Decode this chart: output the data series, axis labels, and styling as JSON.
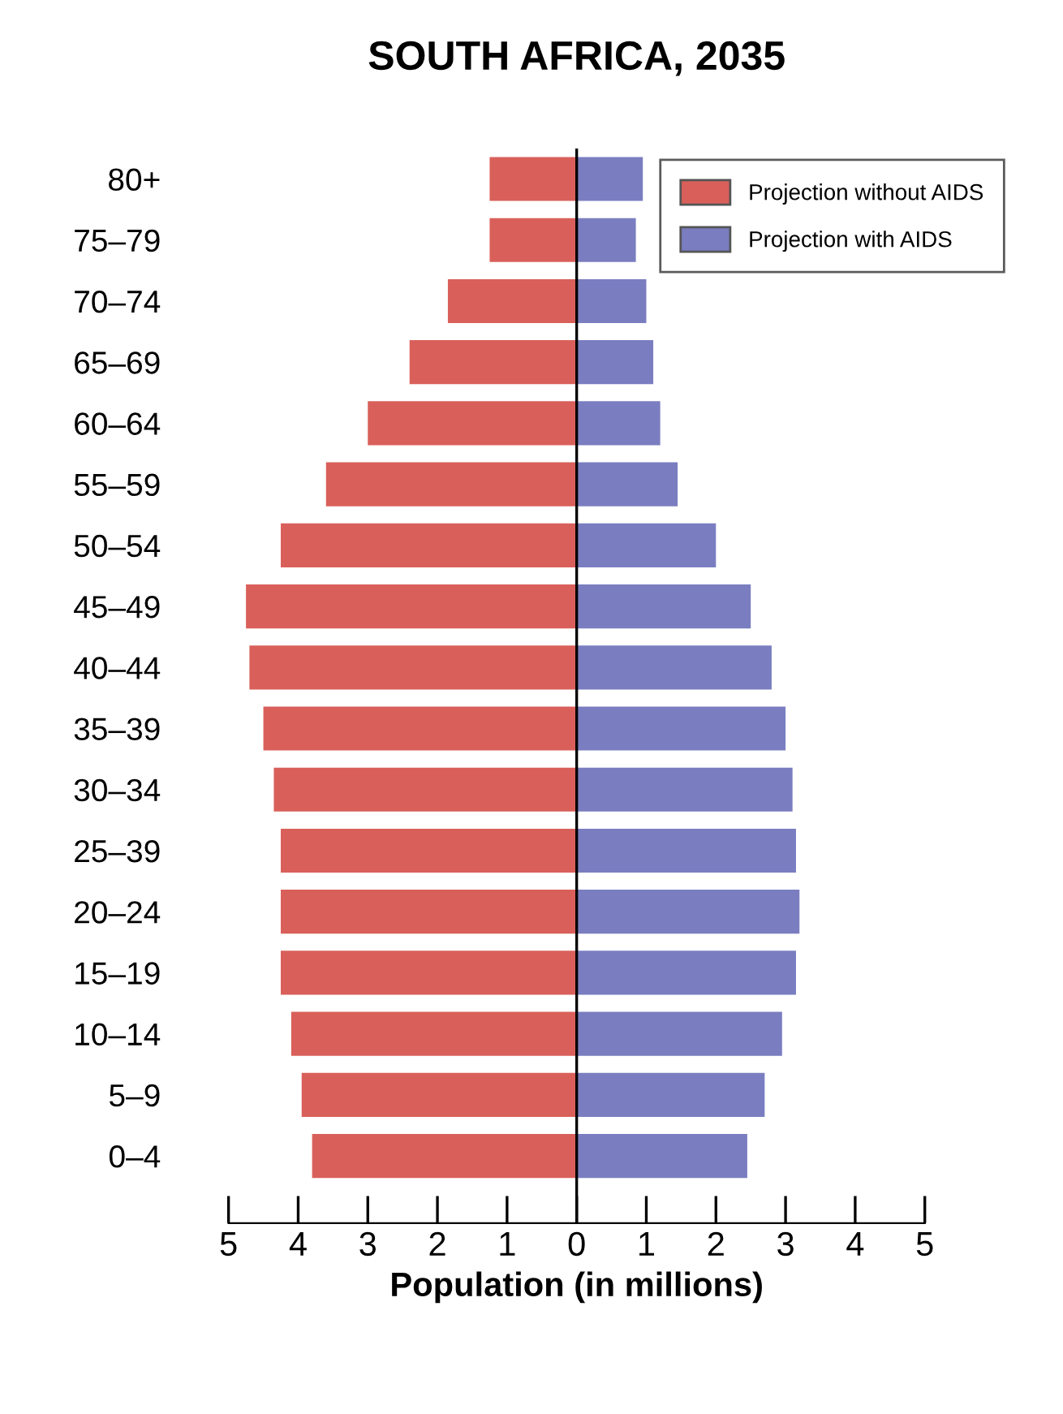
{
  "chart_data": {
    "type": "bar",
    "orientation": "horizontal",
    "title": "SOUTH AFRICA, 2035",
    "xlabel": "Population (in millions)",
    "categories": [
      "80+",
      "75–79",
      "70–74",
      "65–69",
      "60–64",
      "55–59",
      "50–54",
      "45–49",
      "40–44",
      "35–39",
      "30–34",
      "25–39",
      "20–24",
      "15–19",
      "10–14",
      "5–9",
      "0–4"
    ],
    "series": [
      {
        "name": "Projection without AIDS",
        "color": "#d9605a",
        "values": [
          -1.25,
          -1.25,
          -1.85,
          -2.4,
          -3.0,
          -3.6,
          -4.25,
          -4.75,
          -4.7,
          -4.5,
          -4.35,
          -4.25,
          -4.25,
          -4.25,
          -4.1,
          -3.95,
          -3.8
        ]
      },
      {
        "name": "Projection with AIDS",
        "color": "#7a7ec0",
        "values": [
          0.95,
          0.85,
          1.0,
          1.1,
          1.2,
          1.45,
          2.0,
          2.5,
          2.8,
          3.0,
          3.1,
          3.15,
          3.2,
          3.15,
          2.95,
          2.7,
          2.45
        ]
      }
    ],
    "xlim": [
      -5,
      5
    ],
    "xticks": [
      {
        "value": -5,
        "label": "5"
      },
      {
        "value": -4,
        "label": "4"
      },
      {
        "value": -3,
        "label": "3"
      },
      {
        "value": -2,
        "label": "2"
      },
      {
        "value": -1,
        "label": "1"
      },
      0,
      1,
      2,
      3,
      4,
      5
    ],
    "ref_lines": [
      {
        "axis": "x",
        "value": 0,
        "color": "#000000"
      }
    ],
    "legend": "top right",
    "grid": false,
    "stacked": true
  }
}
